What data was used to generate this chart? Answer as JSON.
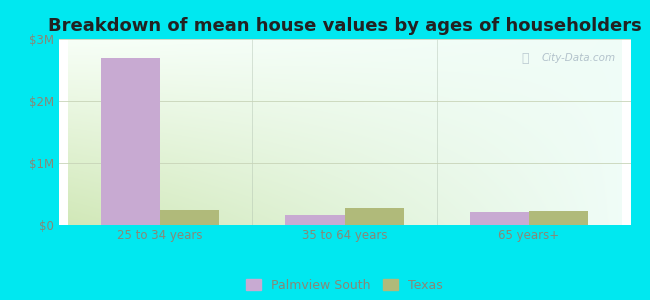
{
  "title": "Breakdown of mean house values by ages of householders",
  "categories": [
    "25 to 34 years",
    "35 to 64 years",
    "65 years+"
  ],
  "series": {
    "Palmview South": [
      2700000,
      155000,
      210000
    ],
    "Texas": [
      235000,
      270000,
      230000
    ]
  },
  "bar_colors": {
    "Palmview South": "#c8aad2",
    "Texas": "#b0ba7a"
  },
  "ylim": [
    0,
    3000000
  ],
  "yticks": [
    0,
    1000000,
    2000000,
    3000000
  ],
  "ytick_labels": [
    "$0",
    "$1M",
    "$2M",
    "$3M"
  ],
  "background_color": "#00e8f0",
  "watermark": "City-Data.com",
  "title_fontsize": 13,
  "tick_fontsize": 8.5,
  "legend_fontsize": 9,
  "bar_width": 0.32,
  "grid_color": "#c8d4b8",
  "axis_label_color": "#888877",
  "grad_top": "#f8fef4",
  "grad_bottom": "#d4e8b8",
  "grad_right": "#f0faf8"
}
